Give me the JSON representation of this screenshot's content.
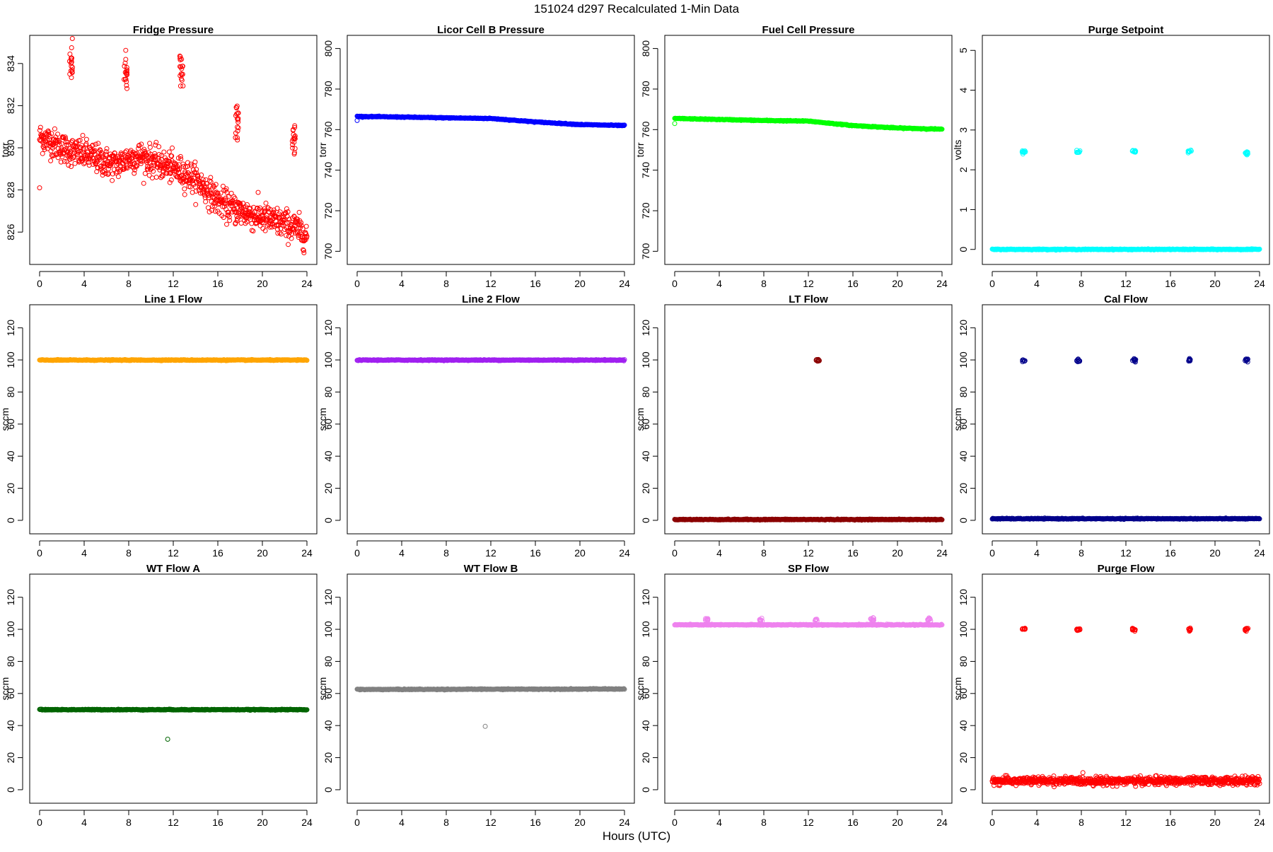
{
  "page_title": "151024   d297   Recalculated 1-Min Data",
  "x_axis_title": "Hours (UTC)",
  "chart_data": [
    {
      "type": "scatter",
      "title": "Fridge Pressure",
      "ylabel": "torr",
      "color": "#ff0000",
      "xlim": [
        0,
        24
      ],
      "ylim": [
        824.8,
        835.0
      ],
      "xticks": [
        0,
        4,
        8,
        12,
        16,
        20,
        24
      ],
      "yticks": [
        826,
        828,
        830,
        832,
        834
      ],
      "series": [
        {
          "values": [
            [
              0,
              828.1
            ],
            [
              0,
              830.5
            ],
            [
              1,
              830.3
            ],
            [
              2,
              830.0
            ],
            [
              3,
              829.8
            ],
            [
              4,
              829.7
            ],
            [
              5,
              829.5
            ],
            [
              6,
              829.3
            ],
            [
              7,
              829.2
            ],
            [
              8,
              829.5
            ],
            [
              9,
              829.6
            ],
            [
              10,
              829.4
            ],
            [
              11,
              829.2
            ],
            [
              12,
              829.0
            ],
            [
              13,
              828.8
            ],
            [
              14,
              828.5
            ],
            [
              15,
              828.0
            ],
            [
              16,
              827.5
            ],
            [
              17,
              827.2
            ],
            [
              18,
              827.0
            ],
            [
              19,
              826.8
            ],
            [
              20,
              826.7
            ],
            [
              21,
              826.5
            ],
            [
              22,
              826.4
            ],
            [
              23,
              826.2
            ],
            [
              24,
              825.8
            ]
          ],
          "spikes": [
            [
              2.8,
              834.1
            ],
            [
              7.7,
              833.5
            ],
            [
              12.7,
              833.6
            ],
            [
              17.7,
              831.3
            ],
            [
              22.8,
              830.3
            ]
          ]
        }
      ]
    },
    {
      "type": "scatter",
      "title": "Licor Cell B Pressure",
      "ylabel": "torr",
      "color": "#0000ff",
      "xlim": [
        0,
        24
      ],
      "ylim": [
        697,
        803
      ],
      "xticks": [
        0,
        4,
        8,
        12,
        16,
        20,
        24
      ],
      "yticks": [
        700,
        720,
        740,
        760,
        780,
        800
      ],
      "series": [
        {
          "values": [
            [
              0,
              764.5
            ],
            [
              0,
              766.5
            ],
            [
              4,
              766.2
            ],
            [
              8,
              765.8
            ],
            [
              12,
              765.5
            ],
            [
              16,
              763.8
            ],
            [
              20,
              762.5
            ],
            [
              24,
              762.0
            ]
          ]
        }
      ]
    },
    {
      "type": "scatter",
      "title": "Fuel Cell Pressure",
      "ylabel": "torr",
      "color": "#00ff00",
      "xlim": [
        0,
        24
      ],
      "ylim": [
        697,
        803
      ],
      "xticks": [
        0,
        4,
        8,
        12,
        16,
        20,
        24
      ],
      "yticks": [
        700,
        720,
        740,
        760,
        780,
        800
      ],
      "series": [
        {
          "values": [
            [
              0,
              763.0
            ],
            [
              0,
              765.5
            ],
            [
              4,
              765.0
            ],
            [
              8,
              764.5
            ],
            [
              12,
              764.2
            ],
            [
              16,
              762.0
            ],
            [
              20,
              760.8
            ],
            [
              24,
              760.2
            ]
          ]
        }
      ]
    },
    {
      "type": "scatter",
      "title": "Purge Setpoint",
      "ylabel": "volts",
      "color": "#00ffff",
      "xlim": [
        0,
        24
      ],
      "ylim": [
        -0.2,
        5.2
      ],
      "xticks": [
        0,
        4,
        8,
        12,
        16,
        20,
        24
      ],
      "yticks": [
        0,
        1,
        2,
        3,
        4,
        5
      ],
      "series": [
        {
          "values": [
            [
              0,
              0.0
            ],
            [
              24,
              0.0
            ]
          ],
          "spikes": [
            [
              2.8,
              2.45
            ],
            [
              7.7,
              2.45
            ],
            [
              12.7,
              2.45
            ],
            [
              17.7,
              2.45
            ],
            [
              22.8,
              2.42
            ]
          ]
        }
      ]
    },
    {
      "type": "scatter",
      "title": "Line 1 Flow",
      "ylabel": "sccm",
      "color": "#ffa500",
      "xlim": [
        0,
        24
      ],
      "ylim": [
        -4,
        130
      ],
      "xticks": [
        0,
        4,
        8,
        12,
        16,
        20,
        24
      ],
      "yticks": [
        0,
        20,
        40,
        60,
        80,
        100,
        120
      ],
      "series": [
        {
          "values": [
            [
              0,
              99.9
            ],
            [
              24,
              99.9
            ]
          ]
        }
      ]
    },
    {
      "type": "scatter",
      "title": "Line 2 Flow",
      "ylabel": "sccm",
      "color": "#a020f0",
      "xlim": [
        0,
        24
      ],
      "ylim": [
        -4,
        130
      ],
      "xticks": [
        0,
        4,
        8,
        12,
        16,
        20,
        24
      ],
      "yticks": [
        0,
        20,
        40,
        60,
        80,
        100,
        120
      ],
      "series": [
        {
          "values": [
            [
              0,
              99.9
            ],
            [
              24,
              99.9
            ]
          ]
        }
      ]
    },
    {
      "type": "scatter",
      "title": "LT Flow",
      "ylabel": "sccm",
      "color": "#8b0000",
      "xlim": [
        0,
        24
      ],
      "ylim": [
        -4,
        130
      ],
      "xticks": [
        0,
        4,
        8,
        12,
        16,
        20,
        24
      ],
      "yticks": [
        0,
        20,
        40,
        60,
        80,
        100,
        120
      ],
      "series": [
        {
          "values": [
            [
              0,
              0.5
            ],
            [
              24,
              0.5
            ]
          ],
          "spikes": [
            [
              12.8,
              99.8
            ]
          ]
        }
      ]
    },
    {
      "type": "scatter",
      "title": "Cal Flow",
      "ylabel": "sccm",
      "color": "#00008b",
      "xlim": [
        0,
        24
      ],
      "ylim": [
        -4,
        130
      ],
      "xticks": [
        0,
        4,
        8,
        12,
        16,
        20,
        24
      ],
      "yticks": [
        0,
        20,
        40,
        60,
        80,
        100,
        120
      ],
      "series": [
        {
          "values": [
            [
              0,
              1.0
            ],
            [
              24,
              1.0
            ]
          ],
          "spikes": [
            [
              2.8,
              99.8
            ],
            [
              7.7,
              99.8
            ],
            [
              12.7,
              99.8
            ],
            [
              17.7,
              99.8
            ],
            [
              22.8,
              99.8
            ]
          ]
        }
      ]
    },
    {
      "type": "scatter",
      "title": "WT Flow A",
      "ylabel": "sccm",
      "color": "#006400",
      "xlim": [
        0,
        24
      ],
      "ylim": [
        -4,
        130
      ],
      "xticks": [
        0,
        4,
        8,
        12,
        16,
        20,
        24
      ],
      "yticks": [
        0,
        20,
        40,
        60,
        80,
        100,
        120
      ],
      "series": [
        {
          "values": [
            [
              0,
              49.9
            ],
            [
              24,
              49.9
            ]
          ],
          "outliers": [
            [
              11.5,
              31.5
            ]
          ]
        }
      ]
    },
    {
      "type": "scatter",
      "title": "WT Flow B",
      "ylabel": "sccm",
      "color": "#808080",
      "xlim": [
        0,
        24
      ],
      "ylim": [
        -4,
        130
      ],
      "xticks": [
        0,
        4,
        8,
        12,
        16,
        20,
        24
      ],
      "yticks": [
        0,
        20,
        40,
        60,
        80,
        100,
        120
      ],
      "series": [
        {
          "values": [
            [
              0,
              62.5
            ],
            [
              24,
              62.8
            ]
          ],
          "outliers": [
            [
              11.5,
              39.5
            ]
          ]
        }
      ]
    },
    {
      "type": "scatter",
      "title": "SP Flow",
      "ylabel": "sccm",
      "color": "#ee82ee",
      "xlim": [
        0,
        24
      ],
      "ylim": [
        -4,
        130
      ],
      "xticks": [
        0,
        4,
        8,
        12,
        16,
        20,
        24
      ],
      "yticks": [
        0,
        20,
        40,
        60,
        80,
        100,
        120
      ],
      "series": [
        {
          "values": [
            [
              0,
              102.8
            ],
            [
              24,
              102.8
            ]
          ],
          "spikes": [
            [
              2.8,
              106.0
            ],
            [
              7.7,
              106.0
            ],
            [
              12.7,
              106.0
            ],
            [
              17.7,
              106.0
            ],
            [
              22.8,
              106.0
            ]
          ]
        }
      ]
    },
    {
      "type": "scatter",
      "title": "Purge Flow",
      "ylabel": "sccm",
      "color": "#ff0000",
      "xlim": [
        0,
        24
      ],
      "ylim": [
        -4,
        130
      ],
      "xticks": [
        0,
        4,
        8,
        12,
        16,
        20,
        24
      ],
      "yticks": [
        0,
        20,
        40,
        60,
        80,
        100,
        120
      ],
      "series": [
        {
          "values": [
            [
              0,
              5.5
            ],
            [
              24,
              5.5
            ]
          ],
          "spikes": [
            [
              2.8,
              100.0
            ],
            [
              7.7,
              99.8
            ],
            [
              12.7,
              100.0
            ],
            [
              17.7,
              100.2
            ],
            [
              22.8,
              100.0
            ]
          ]
        }
      ]
    }
  ]
}
